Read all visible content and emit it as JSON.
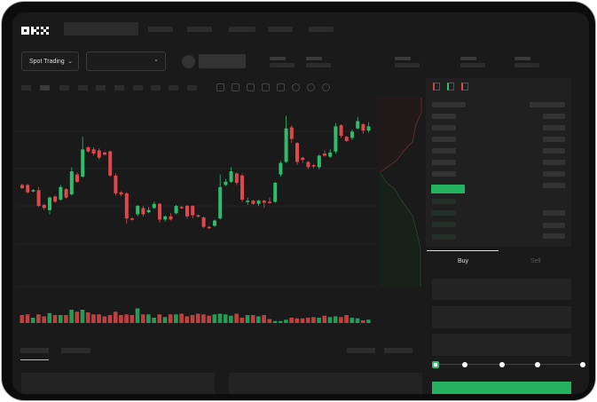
{
  "header": {
    "logo": "OKX",
    "market_selector": {
      "label": "Spot Trading",
      "icon": "chevron-down-icon"
    },
    "pair_selector": {
      "icon": "chevron-down-icon"
    }
  },
  "order_form": {
    "tabs": [
      {
        "label": "Buy",
        "active": true
      },
      {
        "label": "Sell",
        "active": false
      }
    ],
    "slider_level": 0,
    "slider_stops": 5,
    "submit_color": "#25b35f"
  },
  "colors": {
    "up": "#2ebd6b",
    "down": "#e0474c",
    "background": "#1a1a1a"
  },
  "chart_data": {
    "type": "candlestick",
    "title": "",
    "candles": [
      [
        42,
        43,
        38,
        39
      ],
      [
        42,
        43,
        34,
        35
      ],
      [
        36,
        38,
        35,
        37
      ],
      [
        37,
        40,
        21,
        22
      ],
      [
        23,
        24,
        18,
        20
      ],
      [
        18,
        31,
        14,
        30
      ],
      [
        31,
        32,
        25,
        26
      ],
      [
        28,
        42,
        27,
        40
      ],
      [
        38,
        39,
        29,
        30
      ],
      [
        33,
        59,
        32,
        55
      ],
      [
        52,
        54,
        44,
        45
      ],
      [
        50,
        88,
        49,
        76
      ],
      [
        78,
        79,
        73,
        74
      ],
      [
        76,
        78,
        70,
        72
      ],
      [
        75,
        77,
        66,
        68
      ],
      [
        73,
        74,
        70,
        71
      ],
      [
        74,
        75,
        50,
        51
      ],
      [
        51,
        53,
        32,
        34
      ],
      [
        35,
        36,
        31,
        33
      ],
      [
        34,
        35,
        5,
        10
      ],
      [
        10,
        11,
        8,
        9
      ],
      [
        14,
        23,
        12,
        22
      ],
      [
        20,
        22,
        12,
        14
      ],
      [
        16,
        21,
        15,
        18
      ],
      [
        20,
        26,
        19,
        24
      ],
      [
        24,
        25,
        6,
        9
      ],
      [
        9,
        13,
        7,
        12
      ],
      [
        12,
        15,
        8,
        9
      ],
      [
        15,
        23,
        14,
        22
      ],
      [
        21,
        22,
        19,
        20
      ],
      [
        22,
        23,
        10,
        12
      ],
      [
        22,
        23,
        10,
        13
      ],
      [
        13,
        14,
        11,
        12
      ],
      [
        11,
        12,
        1,
        2
      ],
      [
        2,
        3,
        0,
        1
      ],
      [
        3,
        9,
        2,
        8
      ],
      [
        10,
        52,
        9,
        40
      ],
      [
        42,
        48,
        41,
        45
      ],
      [
        45,
        59,
        44,
        55
      ],
      [
        53,
        54,
        42,
        44
      ],
      [
        51,
        53,
        26,
        28
      ],
      [
        26,
        30,
        23,
        27
      ],
      [
        27,
        28,
        23,
        24
      ],
      [
        24,
        28,
        22,
        27
      ],
      [
        27,
        28,
        20,
        25
      ],
      [
        26,
        30,
        24,
        25
      ],
      [
        26,
        45,
        25,
        44
      ],
      [
        52,
        65,
        50,
        63
      ],
      [
        64,
        108,
        63,
        96
      ],
      [
        97,
        99,
        82,
        86
      ],
      [
        82,
        83,
        61,
        64
      ],
      [
        68,
        69,
        63,
        66
      ],
      [
        64,
        65,
        57,
        59
      ],
      [
        61,
        62,
        58,
        60
      ],
      [
        59,
        71,
        57,
        70
      ],
      [
        72,
        75,
        69,
        70
      ],
      [
        69,
        76,
        68,
        73
      ],
      [
        74,
        101,
        72,
        98
      ],
      [
        99,
        100,
        87,
        89
      ],
      [
        88,
        89,
        83,
        84
      ],
      [
        87,
        95,
        85,
        93
      ],
      [
        96,
        107,
        95,
        103
      ],
      [
        100,
        101,
        91,
        94
      ],
      [
        94,
        102,
        92,
        98
      ]
    ],
    "volume": [
      12,
      13,
      8,
      13,
      10,
      15,
      12,
      12,
      12,
      20,
      17,
      20,
      16,
      13,
      13,
      10,
      12,
      17,
      12,
      13,
      12,
      22,
      13,
      13,
      8,
      13,
      9,
      13,
      13,
      14,
      10,
      12,
      14,
      13,
      11,
      13,
      14,
      13,
      11,
      14,
      8,
      12,
      12,
      10,
      12,
      6,
      3,
      3,
      5,
      8,
      7,
      7,
      8,
      9,
      8,
      11,
      9,
      10,
      9,
      12,
      8,
      7,
      4,
      5
    ],
    "grid": true,
    "axes_labels_shown": false
  }
}
